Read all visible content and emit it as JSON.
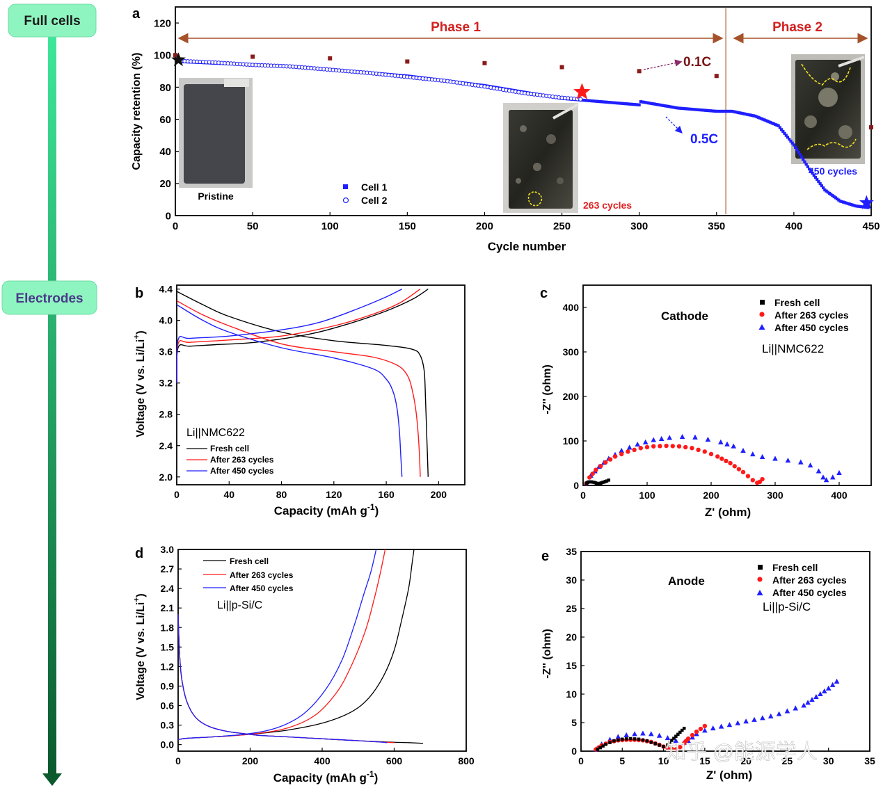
{
  "sidebar": {
    "full_cells_label": "Full cells",
    "electrodes_label": "Electrodes",
    "box_color": "#8ff5c0",
    "arrow_color_top": "#3ee79a",
    "arrow_color_bottom": "#0a5a2e"
  },
  "colors": {
    "black": "#000000",
    "red": "#ff1a1a",
    "blue": "#1f1fff",
    "dark_red": "#8b1a1a",
    "phase_red": "#d32020",
    "brown": "#a5522a"
  },
  "chart_data": [
    {
      "panel": "a",
      "type": "scatter",
      "xlabel": "Cycle number",
      "ylabel": "Capacity retention (%)",
      "xlim": [
        0,
        450
      ],
      "ylim": [
        0,
        130
      ],
      "xticks": [
        0,
        50,
        100,
        150,
        200,
        250,
        300,
        350,
        400,
        450
      ],
      "yticks": [
        0,
        20,
        40,
        60,
        80,
        100,
        120
      ],
      "phase1_label": "Phase 1",
      "phase2_label": "Phase 2",
      "phase_boundary_cycle": 356,
      "annotation_01C": "0.1C",
      "annotation_05C": "0.5C",
      "inset_pristine_label": "Pristine",
      "inset_263_label": "263 cycles",
      "inset_450_label": "450 cycles",
      "legend": [
        "Cell 1",
        "Cell 2"
      ],
      "series": [
        {
          "name": "Cell 1 (0.5C)",
          "x": [
            2,
            25,
            50,
            75,
            100,
            125,
            150,
            175,
            200,
            225,
            250,
            275,
            300,
            301,
            325,
            350,
            360,
            375,
            390,
            400,
            410,
            420,
            430,
            440,
            448
          ],
          "y": [
            96,
            95,
            94,
            93,
            91,
            89,
            87,
            84,
            81,
            77,
            73,
            71,
            69,
            71,
            67,
            65,
            65,
            62,
            56,
            44,
            29,
            16,
            9,
            6,
            5
          ]
        },
        {
          "name": "Cell 2 (0.5C)",
          "x": [
            2,
            25,
            50,
            75,
            100,
            125,
            150,
            175,
            200,
            225,
            250,
            263
          ],
          "y": [
            96,
            95,
            93.5,
            92.5,
            90.5,
            88.5,
            86,
            83.5,
            80,
            76,
            73,
            72
          ]
        },
        {
          "name": "0.1C",
          "x": [
            0,
            50,
            100,
            150,
            200,
            250,
            300,
            350,
            450
          ],
          "y": [
            100,
            99,
            98,
            96,
            95,
            92.5,
            90,
            87,
            55
          ]
        }
      ],
      "markers": [
        {
          "name": "start",
          "x": 2,
          "y": 97
        },
        {
          "name": "263 cycles",
          "x": 263,
          "y": 77
        },
        {
          "name": "450 cycles",
          "x": 447,
          "y": 8
        }
      ]
    },
    {
      "panel": "b",
      "type": "line",
      "xlabel": "Capacity (mAh g-1)",
      "ylabel": "Voltage (V vs. Li/Li+)",
      "xlim": [
        0,
        220
      ],
      "ylim": [
        1.9,
        4.45
      ],
      "xticks": [
        0,
        40,
        80,
        120,
        160,
        200
      ],
      "yticks": [
        2.0,
        2.4,
        2.8,
        3.2,
        3.6,
        4.0,
        4.4
      ],
      "system_label": "Li||NMC622",
      "legend": [
        "Fresh cell",
        "After 263 cycles",
        "After 450 cycles"
      ],
      "series": [
        {
          "name": "Fresh cell charge",
          "x": [
            0,
            1,
            10,
            30,
            60,
            100,
            130,
            160,
            180,
            192
          ],
          "y": [
            3.2,
            3.65,
            3.67,
            3.69,
            3.72,
            3.82,
            3.95,
            4.12,
            4.27,
            4.4
          ]
        },
        {
          "name": "Fresh cell discharge",
          "x": [
            0,
            20,
            40,
            80,
            120,
            160,
            180,
            186,
            189,
            190,
            191,
            192
          ],
          "y": [
            4.37,
            4.2,
            4.05,
            3.85,
            3.74,
            3.68,
            3.63,
            3.55,
            3.35,
            3.0,
            2.5,
            2.0
          ]
        },
        {
          "name": "After 263 cycles charge",
          "x": [
            0,
            1,
            10,
            40,
            80,
            120,
            150,
            170,
            186
          ],
          "y": [
            3.2,
            3.7,
            3.72,
            3.75,
            3.8,
            3.93,
            4.08,
            4.22,
            4.4
          ]
        },
        {
          "name": "After 263 cycles discharge",
          "x": [
            0,
            20,
            40,
            80,
            120,
            150,
            168,
            176,
            180,
            183,
            185,
            186
          ],
          "y": [
            4.25,
            4.07,
            3.93,
            3.7,
            3.6,
            3.53,
            3.43,
            3.3,
            3.1,
            2.8,
            2.4,
            2.0
          ]
        },
        {
          "name": "After 450 cycles charge",
          "x": [
            0,
            1,
            10,
            40,
            80,
            110,
            140,
            160,
            172
          ],
          "y": [
            3.2,
            3.75,
            3.77,
            3.8,
            3.88,
            3.98,
            4.16,
            4.3,
            4.4
          ]
        },
        {
          "name": "After 450 cycles discharge",
          "x": [
            0,
            20,
            40,
            80,
            120,
            150,
            160,
            165,
            168,
            170,
            171,
            172
          ],
          "y": [
            4.2,
            4.0,
            3.85,
            3.65,
            3.52,
            3.38,
            3.25,
            3.1,
            2.9,
            2.6,
            2.3,
            2.0
          ]
        }
      ]
    },
    {
      "panel": "c",
      "type": "scatter",
      "xlabel": "Z' (ohm)",
      "ylabel": "-Z'' (ohm)",
      "xlim": [
        0,
        450
      ],
      "ylim": [
        0,
        450
      ],
      "xticks": [
        0,
        100,
        200,
        300,
        400
      ],
      "yticks": [
        0,
        100,
        200,
        300,
        400
      ],
      "title": "Cathode",
      "system_label": "Li||NMC622",
      "legend": [
        "Fresh cell",
        "After 263 cycles",
        "After 450 cycles"
      ],
      "series": [
        {
          "name": "Fresh cell",
          "x": [
            5,
            9,
            13,
            17,
            21,
            25,
            29,
            33,
            37,
            40
          ],
          "y": [
            5,
            8,
            8,
            7,
            5,
            4,
            6,
            8,
            10,
            12
          ]
        },
        {
          "name": "After 263 cycles",
          "x": [
            5,
            10,
            20,
            35,
            50,
            70,
            90,
            110,
            130,
            150,
            170,
            190,
            210,
            230,
            250,
            265,
            272,
            276,
            280
          ],
          "y": [
            5,
            18,
            35,
            52,
            65,
            76,
            84,
            88,
            89,
            88,
            84,
            76,
            65,
            50,
            30,
            12,
            6,
            8,
            14
          ]
        },
        {
          "name": "After 450 cycles",
          "x": [
            5,
            12,
            25,
            40,
            60,
            85,
            110,
            135,
            155,
            175,
            195,
            215,
            235,
            250,
            265,
            280,
            300,
            320,
            340,
            355,
            368,
            375,
            380,
            390,
            400
          ],
          "y": [
            5,
            22,
            42,
            60,
            78,
            92,
            102,
            107,
            109,
            108,
            103,
            97,
            88,
            78,
            70,
            64,
            60,
            56,
            52,
            45,
            32,
            18,
            12,
            18,
            28
          ]
        }
      ]
    },
    {
      "panel": "d",
      "type": "line",
      "xlabel": "Capacity (mAh g-1)",
      "ylabel": "Voltage (V vs. Li/Li+)",
      "xlim": [
        0,
        800
      ],
      "ylim": [
        -0.1,
        3.0
      ],
      "xticks": [
        0,
        200,
        400,
        600,
        800
      ],
      "yticks": [
        0.0,
        0.3,
        0.6,
        0.9,
        1.2,
        1.5,
        1.8,
        2.1,
        2.4,
        2.7,
        3.0
      ],
      "system_label": "Li||p-Si/C",
      "legend": [
        "Fresh cell",
        "After 263 cycles",
        "After 450 cycles"
      ],
      "series": [
        {
          "name": "Fresh cell discharge",
          "x": [
            0,
            3,
            8,
            15,
            25,
            40,
            60,
            90,
            130,
            180,
            230,
            300,
            400,
            500,
            580,
            640,
            680
          ],
          "y": [
            2.0,
            1.5,
            1.1,
            0.85,
            0.65,
            0.48,
            0.36,
            0.27,
            0.21,
            0.17,
            0.14,
            0.12,
            0.09,
            0.06,
            0.04,
            0.03,
            0.02
          ]
        },
        {
          "name": "Fresh cell charge",
          "x": [
            0,
            30,
            100,
            200,
            300,
            400,
            480,
            530,
            570,
            600,
            620,
            640,
            650,
            655
          ],
          "y": [
            0.08,
            0.1,
            0.12,
            0.16,
            0.22,
            0.33,
            0.5,
            0.72,
            1.05,
            1.45,
            1.9,
            2.4,
            2.8,
            3.0
          ]
        },
        {
          "name": "After 263 cycles discharge",
          "x": [
            0,
            3,
            8,
            15,
            25,
            40,
            60,
            90,
            130,
            180,
            230,
            300,
            400,
            500,
            560,
            600
          ],
          "y": [
            2.0,
            1.5,
            1.1,
            0.85,
            0.65,
            0.48,
            0.36,
            0.27,
            0.21,
            0.17,
            0.14,
            0.12,
            0.09,
            0.06,
            0.04,
            0.03
          ]
        },
        {
          "name": "After 263 cycles charge",
          "x": [
            0,
            30,
            100,
            200,
            300,
            380,
            440,
            480,
            520,
            545,
            560,
            575
          ],
          "y": [
            0.08,
            0.1,
            0.12,
            0.16,
            0.25,
            0.45,
            0.8,
            1.2,
            1.75,
            2.25,
            2.6,
            3.0
          ]
        },
        {
          "name": "After 450 cycles discharge",
          "x": [
            0,
            3,
            8,
            15,
            25,
            40,
            60,
            90,
            130,
            180,
            230,
            300,
            400,
            500,
            560,
            580
          ],
          "y": [
            2.0,
            1.5,
            1.1,
            0.85,
            0.65,
            0.48,
            0.36,
            0.27,
            0.21,
            0.17,
            0.14,
            0.12,
            0.09,
            0.06,
            0.04,
            0.03
          ]
        },
        {
          "name": "After 450 cycles charge",
          "x": [
            0,
            30,
            100,
            200,
            280,
            350,
            410,
            455,
            490,
            515,
            535,
            550
          ],
          "y": [
            0.08,
            0.1,
            0.12,
            0.17,
            0.27,
            0.48,
            0.85,
            1.3,
            1.85,
            2.3,
            2.65,
            3.0
          ]
        }
      ]
    },
    {
      "panel": "e",
      "type": "scatter",
      "xlabel": "Z' (ohm)",
      "ylabel": "-Z'' (ohm)",
      "xlim": [
        0,
        35
      ],
      "ylim": [
        0,
        35
      ],
      "xticks": [
        0,
        5,
        10,
        15,
        20,
        25,
        30,
        35
      ],
      "yticks": [
        0,
        5,
        10,
        15,
        20,
        25,
        30,
        35
      ],
      "title": "Anode",
      "system_label": "Li||p-Si/C",
      "legend": [
        "Fresh cell",
        "After 263 cycles",
        "After 450 cycles"
      ],
      "watermark": "知乎 @能源学人",
      "series": [
        {
          "name": "Fresh cell",
          "x": [
            2,
            3,
            4,
            5,
            6,
            7,
            8,
            9,
            10,
            10.5,
            11,
            11.5,
            12,
            12.5
          ],
          "y": [
            0.3,
            1.2,
            1.8,
            2.1,
            2.2,
            2.1,
            1.8,
            1.3,
            0.8,
            1.1,
            1.9,
            2.6,
            3.3,
            4.0
          ]
        },
        {
          "name": "After 263 cycles",
          "x": [
            1.8,
            2.5,
            3.5,
            4.5,
            5.5,
            6.5,
            7.5,
            8.5,
            9.5,
            10.5,
            11.5,
            12,
            12.5,
            13,
            13.5,
            14,
            14.5,
            15
          ],
          "y": [
            0.3,
            1.0,
            1.6,
            1.9,
            2.0,
            2.0,
            1.9,
            1.6,
            1.1,
            0.5,
            0.3,
            0.7,
            1.4,
            2.2,
            2.8,
            3.4,
            3.9,
            4.4
          ]
        },
        {
          "name": "After 450 cycles",
          "x": [
            1.8,
            2.5,
            3.5,
            4.5,
            5.5,
            6.5,
            7.5,
            8.5,
            9.5,
            10.5,
            11.5,
            12.5,
            13,
            13.5,
            14,
            15,
            16,
            17,
            18,
            19,
            20,
            21,
            22,
            23,
            24,
            25,
            26,
            27,
            28,
            29,
            30,
            31
          ],
          "y": [
            0.3,
            1.2,
            2.0,
            2.5,
            2.8,
            3.0,
            3.1,
            3.0,
            2.7,
            2.3,
            1.8,
            1.5,
            1.8,
            2.4,
            3.0,
            3.6,
            4.0,
            4.3,
            4.6,
            4.9,
            5.2,
            5.5,
            5.8,
            6.1,
            6.5,
            7.0,
            7.5,
            8.0,
            9.0,
            10.0,
            11.0,
            12.2
          ]
        }
      ]
    }
  ]
}
